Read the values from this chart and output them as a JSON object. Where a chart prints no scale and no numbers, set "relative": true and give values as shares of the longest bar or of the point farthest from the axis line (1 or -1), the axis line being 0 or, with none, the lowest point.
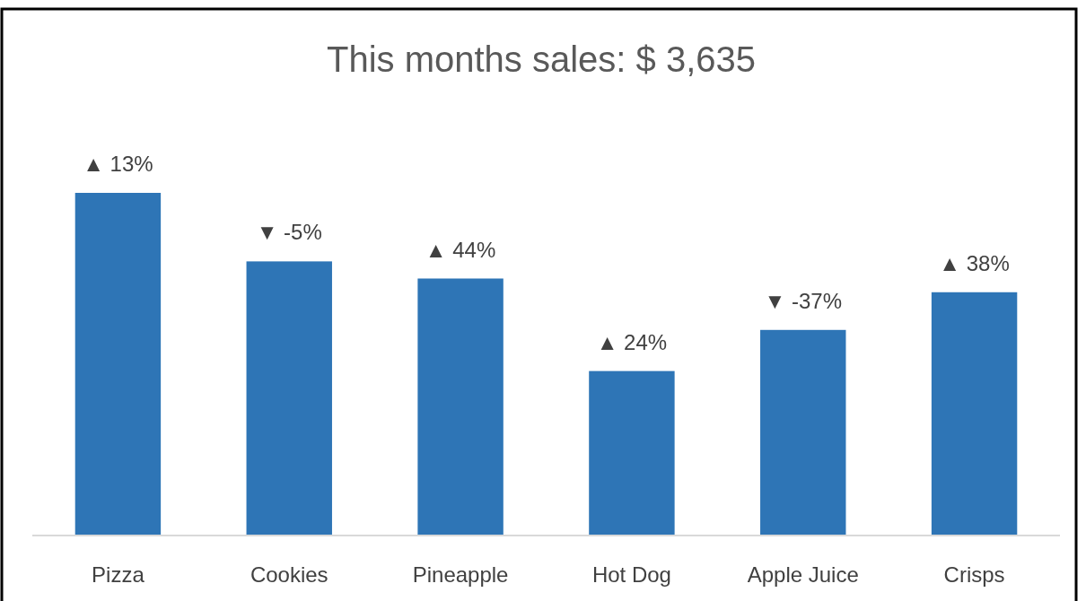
{
  "chart_data": {
    "type": "bar",
    "title": "This months sales: $ 3,635",
    "relative": true,
    "categories": [
      "Pizza",
      "Cookies",
      "Pineapple",
      "Hot Dog",
      "Apple Juice",
      "Crisps"
    ],
    "values": [
      1,
      0.8,
      0.75,
      0.48,
      0.6,
      0.71
    ],
    "color": "#2e75b6",
    "annotations": [
      {
        "text": "▲ 13%",
        "x": "Pizza",
        "y": 1
      },
      {
        "text": "▼ -5%",
        "x": "Cookies",
        "y": 0.8
      },
      {
        "text": "▲ 44%",
        "x": "Pineapple",
        "y": 0.75
      },
      {
        "text": "▲ 24%",
        "x": "Hot Dog",
        "y": 0.48
      },
      {
        "text": "▼ -37%",
        "x": "Apple Juice",
        "y": 0.6
      },
      {
        "text": "▲ 38%",
        "x": "Crisps",
        "y": 0.71
      }
    ]
  }
}
